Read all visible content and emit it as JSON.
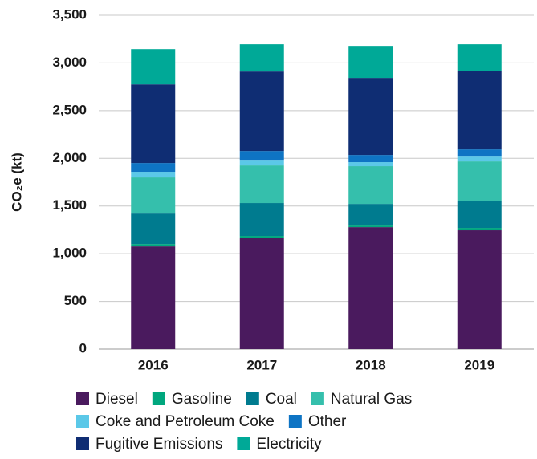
{
  "chart_data": {
    "type": "stacked-bar",
    "ylabel": "CO₂e (kt)",
    "categories": [
      "2016",
      "2017",
      "2018",
      "2019"
    ],
    "series": [
      {
        "name": "Diesel",
        "color": "#4a1a5e",
        "values": [
          1076,
          1161,
          1278,
          1245
        ]
      },
      {
        "name": "Gasoline",
        "color": "#00a77e",
        "values": [
          25,
          25,
          17,
          25
        ]
      },
      {
        "name": "Coal",
        "color": "#007b8f",
        "values": [
          320,
          345,
          227,
          286
        ]
      },
      {
        "name": "Natural Gas",
        "color": "#35bfac",
        "values": [
          379,
          395,
          396,
          412
        ]
      },
      {
        "name": "Coke and Petroleum Coke",
        "color": "#5bc8e8",
        "values": [
          59,
          50,
          42,
          50
        ]
      },
      {
        "name": "Other",
        "color": "#0e74c4",
        "values": [
          92,
          101,
          75,
          76
        ]
      },
      {
        "name": "Fugitive Emissions",
        "color": "#0f2d73",
        "values": [
          824,
          833,
          808,
          824
        ]
      },
      {
        "name": "Electricity",
        "color": "#00a997",
        "values": [
          370,
          286,
          336,
          278
        ]
      }
    ],
    "ylim": [
      0,
      3500
    ],
    "yticks": [
      0,
      500,
      {
        "value": 1000,
        "label": "1,000"
      },
      {
        "value": 1500,
        "label": "1,500"
      },
      {
        "value": 2000,
        "label": "2,000"
      },
      {
        "value": 2500,
        "label": "2,500"
      },
      {
        "value": 3000,
        "label": "3,000"
      },
      {
        "value": 3500,
        "label": "3,500"
      }
    ],
    "grid": true
  }
}
